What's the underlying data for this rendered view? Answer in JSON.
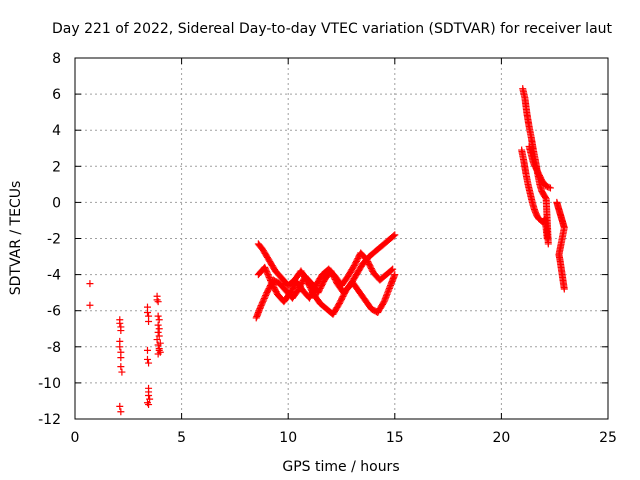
{
  "chart_data": {
    "type": "scatter",
    "title": "Day 221 of 2022, Sidereal Day-to-day VTEC variation (SDTVAR) for receiver laut",
    "xlabel": "GPS time / hours",
    "ylabel": "SDTVAR / TECUs",
    "xlim": [
      0,
      25
    ],
    "ylim": [
      -12,
      8
    ],
    "xticks": [
      0,
      5,
      10,
      15,
      20,
      25
    ],
    "yticks": [
      -12,
      -10,
      -8,
      -6,
      -4,
      -2,
      0,
      2,
      4,
      6,
      8
    ],
    "xtick_labels": [
      "0",
      "5",
      "10",
      "15",
      "20",
      "25"
    ],
    "ytick_labels": [
      "-12",
      "-10",
      "-8",
      "-6",
      "-4",
      "-2",
      "0",
      "2",
      "4",
      "6",
      "8"
    ],
    "grid": true,
    "marker": "plus",
    "color": "#ff0000",
    "series": [
      {
        "name": "SDTVAR",
        "x": [
          0.7,
          0.7,
          2.1,
          2.1,
          2.15,
          2.15,
          2.1,
          2.1,
          2.15,
          2.15,
          2.15,
          2.2,
          2.1,
          2.15,
          3.4,
          3.4,
          3.45,
          3.45,
          3.4,
          3.4,
          3.45,
          3.45,
          3.45,
          3.45,
          3.5,
          3.4,
          3.45,
          3.85,
          3.85,
          3.9,
          3.9,
          3.95,
          3.9,
          3.95,
          3.9,
          3.95,
          3.85,
          3.9,
          3.95,
          4.0,
          3.9,
          3.95,
          4.0
        ],
        "y": [
          -4.5,
          -5.7,
          -6.5,
          -6.7,
          -6.9,
          -7.1,
          -7.7,
          -8.0,
          -8.3,
          -8.6,
          -9.1,
          -9.4,
          -11.3,
          -11.6,
          -5.8,
          -6.1,
          -6.3,
          -6.6,
          -8.2,
          -8.7,
          -8.9,
          -10.3,
          -10.5,
          -10.7,
          -10.9,
          -11.1,
          -11.2,
          -5.2,
          -5.4,
          -5.5,
          -6.3,
          -6.5,
          -6.8,
          -7.0,
          -7.2,
          -7.4,
          -7.6,
          -7.9,
          -8.1,
          -8.3,
          -8.4,
          -8.2,
          -7.8
        ]
      }
    ],
    "tracks": [
      {
        "x": [
          8.5,
          8.7,
          9.0,
          9.3,
          9.6,
          9.9,
          10.2,
          10.5,
          10.8,
          11.1,
          11.4,
          11.7,
          12.0,
          12.3,
          12.6,
          12.9,
          13.2,
          13.5,
          13.8,
          14.1,
          14.4,
          14.7,
          15.0
        ],
        "y": [
          -6.4,
          -5.8,
          -5.0,
          -4.3,
          -4.5,
          -4.9,
          -5.3,
          -4.8,
          -4.1,
          -4.5,
          -5.0,
          -4.3,
          -3.8,
          -4.5,
          -5.0,
          -4.6,
          -4.0,
          -3.4,
          -3.0,
          -2.7,
          -2.4,
          -2.1,
          -1.8
        ]
      },
      {
        "x": [
          8.6,
          8.8,
          9.1,
          9.4,
          9.7,
          10.0,
          10.3,
          10.6,
          10.9,
          11.2,
          11.5,
          11.8,
          12.1,
          12.4,
          12.7,
          13.0,
          13.3,
          13.6,
          13.9,
          14.2,
          14.5,
          14.8,
          15.0
        ],
        "y": [
          -2.3,
          -2.6,
          -3.2,
          -3.8,
          -4.2,
          -4.6,
          -4.3,
          -3.8,
          -4.4,
          -5.1,
          -5.6,
          -5.9,
          -6.2,
          -5.6,
          -4.9,
          -4.4,
          -4.9,
          -5.4,
          -5.9,
          -6.1,
          -5.5,
          -4.6,
          -4.0
        ]
      },
      {
        "x": [
          8.6,
          8.9,
          9.2,
          9.5,
          9.8,
          10.1,
          10.4,
          10.7,
          11.0,
          11.3,
          11.6,
          11.9,
          12.2,
          12.5,
          12.8,
          13.1,
          13.4,
          13.7,
          14.0,
          14.3,
          14.6,
          14.9
        ],
        "y": [
          -4.0,
          -3.6,
          -4.4,
          -5.1,
          -5.5,
          -5.0,
          -4.4,
          -4.9,
          -5.3,
          -4.6,
          -4.0,
          -3.7,
          -4.1,
          -4.6,
          -4.1,
          -3.5,
          -2.8,
          -3.2,
          -3.9,
          -4.3,
          -4.0,
          -3.7
        ]
      },
      {
        "x": [
          21.0,
          21.1,
          21.2,
          21.3,
          21.4,
          21.5,
          21.6,
          21.7,
          21.8,
          21.9,
          22.0,
          22.1,
          22.2
        ],
        "y": [
          6.3,
          5.8,
          4.9,
          4.2,
          3.6,
          2.9,
          2.3,
          1.6,
          1.0,
          0.6,
          0.4,
          0.2,
          -2.3
        ]
      },
      {
        "x": [
          20.95,
          21.05,
          21.15,
          21.25,
          21.35,
          21.45,
          21.55,
          21.65,
          21.75,
          21.85,
          21.95,
          22.05,
          22.15
        ],
        "y": [
          2.9,
          2.3,
          1.6,
          1.0,
          0.5,
          0.0,
          -0.4,
          -0.7,
          -0.9,
          -1.0,
          -1.1,
          -0.9,
          -2.0
        ]
      },
      {
        "x": [
          21.3,
          21.5,
          21.7,
          21.9,
          22.1,
          22.3
        ],
        "y": [
          3.1,
          2.2,
          1.7,
          1.2,
          0.9,
          0.8
        ]
      },
      {
        "x": [
          22.6,
          22.65,
          22.7,
          22.75,
          22.8,
          22.85,
          22.9,
          22.95,
          22.7,
          22.75,
          22.8,
          22.85,
          22.9,
          22.95
        ],
        "y": [
          0.0,
          -0.2,
          -0.4,
          -0.6,
          -0.8,
          -1.0,
          -1.2,
          -1.4,
          -2.9,
          -3.2,
          -3.6,
          -4.0,
          -4.4,
          -4.8
        ]
      }
    ]
  }
}
